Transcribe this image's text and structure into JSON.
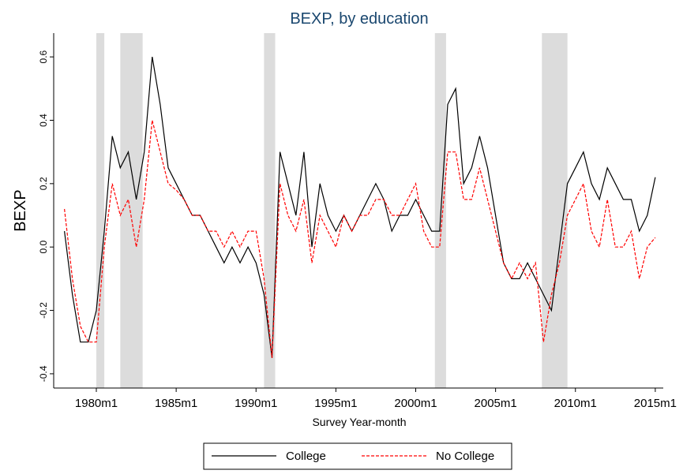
{
  "chart_data": {
    "type": "line",
    "title": "BEXP, by education",
    "x_label": "Survey Year-month",
    "y_label": "BEXP",
    "x": [
      1978,
      1978.5,
      1979,
      1979.5,
      1980,
      1980.5,
      1981,
      1981.5,
      1982,
      1982.5,
      1983,
      1983.5,
      1984,
      1984.5,
      1985,
      1985.5,
      1986,
      1986.5,
      1987,
      1987.5,
      1988,
      1988.5,
      1989,
      1989.5,
      1990,
      1990.5,
      1991,
      1991.5,
      1992,
      1992.5,
      1993,
      1993.5,
      1994,
      1994.5,
      1995,
      1995.5,
      1996,
      1996.5,
      1997,
      1997.5,
      1998,
      1998.5,
      1999,
      1999.5,
      2000,
      2000.5,
      2001,
      2001.5,
      2002,
      2002.5,
      2003,
      2003.5,
      2004,
      2004.5,
      2005,
      2005.5,
      2006,
      2006.5,
      2007,
      2007.5,
      2008,
      2008.5,
      2009,
      2009.5,
      2010,
      2010.5,
      2011,
      2011.5,
      2012,
      2012.5,
      2013,
      2013.5,
      2014,
      2014.5,
      2015
    ],
    "series": [
      {
        "name": "College",
        "color": "#000000",
        "dash": false,
        "values": [
          0.05,
          -0.15,
          -0.3,
          -0.3,
          -0.2,
          0.05,
          0.35,
          0.25,
          0.3,
          0.15,
          0.3,
          0.6,
          0.45,
          0.25,
          0.2,
          0.15,
          0.1,
          0.1,
          0.05,
          0.0,
          -0.05,
          0.0,
          -0.05,
          0.0,
          -0.05,
          -0.15,
          -0.35,
          0.3,
          0.2,
          0.1,
          0.3,
          0.0,
          0.2,
          0.1,
          0.05,
          0.1,
          0.05,
          0.1,
          0.15,
          0.2,
          0.15,
          0.05,
          0.1,
          0.1,
          0.15,
          0.1,
          0.05,
          0.05,
          0.45,
          0.5,
          0.2,
          0.25,
          0.35,
          0.25,
          0.1,
          -0.05,
          -0.1,
          -0.1,
          -0.05,
          -0.1,
          -0.15,
          -0.2,
          0.0,
          0.2,
          0.25,
          0.3,
          0.2,
          0.15,
          0.25,
          0.2,
          0.15,
          0.15,
          0.05,
          0.1,
          0.22
        ]
      },
      {
        "name": "No College",
        "color": "#ff0000",
        "dash": true,
        "values": [
          0.12,
          -0.1,
          -0.25,
          -0.3,
          -0.3,
          0.0,
          0.2,
          0.1,
          0.15,
          0.0,
          0.15,
          0.4,
          0.3,
          0.2,
          0.18,
          0.15,
          0.1,
          0.1,
          0.05,
          0.05,
          0.0,
          0.05,
          0.0,
          0.05,
          0.05,
          -0.1,
          -0.35,
          0.2,
          0.1,
          0.05,
          0.15,
          -0.05,
          0.1,
          0.05,
          0.0,
          0.1,
          0.05,
          0.1,
          0.1,
          0.15,
          0.15,
          0.1,
          0.1,
          0.15,
          0.2,
          0.05,
          0.0,
          0.0,
          0.3,
          0.3,
          0.15,
          0.15,
          0.25,
          0.15,
          0.05,
          -0.05,
          -0.1,
          -0.05,
          -0.1,
          -0.05,
          -0.3,
          -0.15,
          -0.05,
          0.1,
          0.15,
          0.2,
          0.05,
          0.0,
          0.15,
          0.0,
          0.0,
          0.05,
          -0.1,
          0.0,
          0.03
        ]
      }
    ],
    "recessions": [
      [
        1980.0,
        1980.5
      ],
      [
        1981.5,
        1982.9
      ],
      [
        1990.5,
        1991.2
      ],
      [
        2001.2,
        2001.9
      ],
      [
        2007.9,
        2009.5
      ]
    ],
    "recession_color": "#dcdcdc",
    "xlim": [
      1977.33,
      2015.5
    ],
    "xticks": [
      {
        "value": 1980,
        "label": "1980m1"
      },
      {
        "value": 1985,
        "label": "1985m1"
      },
      {
        "value": 1990,
        "label": "1990m1"
      },
      {
        "value": 1995,
        "label": "1995m1"
      },
      {
        "value": 2000,
        "label": "2000m1"
      },
      {
        "value": 2005,
        "label": "2005m1"
      },
      {
        "value": 2010,
        "label": "2010m1"
      },
      {
        "value": 2015,
        "label": "2015m1"
      }
    ],
    "ylim": [
      -0.445,
      0.675
    ],
    "yticks": [
      -0.4,
      -0.2,
      {
        "value": 0,
        "label": "0.0"
      },
      0.2,
      0.4,
      0.6
    ],
    "legend": "bottom"
  }
}
